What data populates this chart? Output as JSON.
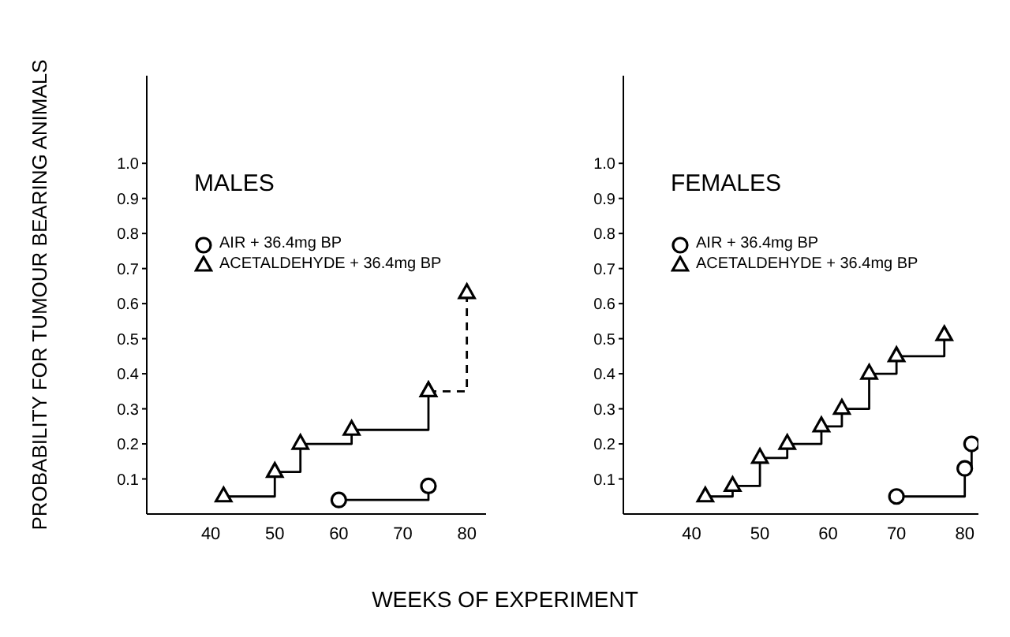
{
  "chart_data": [
    {
      "type": "step",
      "title": "MALES",
      "ylabel": "PROBABILITY FOR TUMOUR BEARING ANIMALS",
      "xlabel": "WEEKS OF EXPERIMENT",
      "xlim": [
        30,
        83
      ],
      "xticks": [
        40,
        50,
        60,
        70,
        80
      ],
      "ylim": [
        0,
        1.25
      ],
      "yticks": [
        0.1,
        0.2,
        0.3,
        0.4,
        0.5,
        0.6,
        0.7,
        0.8,
        0.9,
        {
          "value": 1,
          "label": "1.0"
        }
      ],
      "legend": "top left",
      "series": [
        {
          "name": "AIR + 36.4mg BP",
          "marker": "circle",
          "color": "#000000",
          "x": [
            60,
            74
          ],
          "values": [
            0.04,
            0.08
          ]
        },
        {
          "name": "ACETALDEHYDE + 36.4mg BP",
          "marker": "triangle",
          "color": "#000000",
          "x": [
            42,
            50,
            54,
            62,
            74
          ],
          "values": [
            0.05,
            0.12,
            0.2,
            0.24,
            0.35
          ]
        },
        {
          "marker": "triangle",
          "line_style": "dashed",
          "color": "#000000",
          "x": [
            74,
            80
          ],
          "values": [
            0.35,
            0.63
          ]
        }
      ]
    },
    {
      "type": "step",
      "title": "FEMALES",
      "xlim": [
        30,
        82
      ],
      "xticks": [
        40,
        50,
        60,
        70,
        80
      ],
      "ylim": [
        0,
        1.25
      ],
      "yticks": [
        0.1,
        0.2,
        0.3,
        0.4,
        0.5,
        0.6,
        0.7,
        0.8,
        0.9,
        {
          "value": 1,
          "label": "1.0"
        }
      ],
      "legend": "top left",
      "series": [
        {
          "name": "AIR + 36.4mg BP",
          "marker": "circle",
          "color": "#000000",
          "x": [
            70,
            80,
            81
          ],
          "values": [
            0.05,
            0.13,
            0.2
          ]
        },
        {
          "name": "ACETALDEHYDE + 36.4mg BP",
          "marker": "triangle",
          "color": "#000000",
          "x": [
            42,
            46,
            50,
            54,
            59,
            62,
            66,
            70,
            77
          ],
          "values": [
            0.05,
            0.08,
            0.16,
            0.2,
            0.25,
            0.3,
            0.4,
            0.45,
            0.51
          ]
        }
      ]
    }
  ]
}
